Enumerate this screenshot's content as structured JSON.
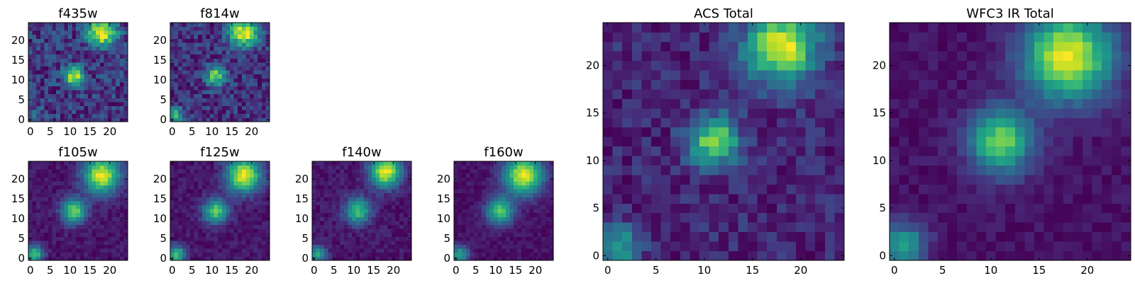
{
  "chart_data": {
    "type": "heatmap",
    "colormap": "viridis",
    "grid": false,
    "panels": [
      {
        "id": "f435w",
        "title": "f435w",
        "xlim": [
          -0.5,
          24.5
        ],
        "ylim": [
          -0.5,
          24.5
        ],
        "xticks": [
          0,
          5,
          10,
          15,
          20
        ],
        "yticks": [
          0,
          5,
          10,
          15,
          20
        ],
        "sources": [
          [
            18,
            22,
            1.0,
            2.5
          ],
          [
            11,
            11,
            0.9,
            1.7
          ],
          [
            1,
            1,
            0.3,
            1.5
          ]
        ],
        "background": 0.55,
        "noise": 0.45,
        "seed": 11
      },
      {
        "id": "f814w",
        "title": "f814w",
        "xlim": [
          -0.5,
          24.5
        ],
        "ylim": [
          -0.5,
          24.5
        ],
        "xticks": [
          0,
          5,
          10,
          15,
          20
        ],
        "yticks": [
          0,
          5,
          10,
          15,
          20
        ],
        "sources": [
          [
            18,
            22,
            1.0,
            2.6
          ],
          [
            11,
            11,
            0.8,
            1.8
          ],
          [
            1,
            1,
            0.6,
            1.5
          ]
        ],
        "background": 0.35,
        "noise": 0.4,
        "seed": 23
      },
      {
        "id": "f105w",
        "title": "f105w",
        "xlim": [
          -0.5,
          24.5
        ],
        "ylim": [
          -0.5,
          24.5
        ],
        "xticks": [
          0,
          5,
          10,
          15,
          20
        ],
        "yticks": [
          0,
          5,
          10,
          15,
          20
        ],
        "sources": [
          [
            18,
            21,
            1.0,
            3.2
          ],
          [
            11,
            12,
            0.8,
            2.2
          ],
          [
            1,
            1,
            0.7,
            1.6
          ]
        ],
        "background": 0.3,
        "noise": 0.15,
        "seed": 37
      },
      {
        "id": "f125w",
        "title": "f125w",
        "xlim": [
          -0.5,
          24.5
        ],
        "ylim": [
          -0.5,
          24.5
        ],
        "xticks": [
          0,
          5,
          10,
          15,
          20
        ],
        "yticks": [
          0,
          5,
          10,
          15,
          20
        ],
        "sources": [
          [
            18,
            21,
            1.0,
            3.0
          ],
          [
            11,
            12,
            0.75,
            2.2
          ],
          [
            1,
            1,
            0.7,
            1.6
          ]
        ],
        "background": 0.28,
        "noise": 0.15,
        "seed": 41
      },
      {
        "id": "f140w",
        "title": "f140w",
        "xlim": [
          -0.5,
          24.5
        ],
        "ylim": [
          -0.5,
          24.5
        ],
        "xticks": [
          0,
          5,
          10,
          15,
          20
        ],
        "yticks": [
          0,
          5,
          10,
          15,
          20
        ],
        "sources": [
          [
            18,
            22,
            1.0,
            2.8
          ],
          [
            11,
            12,
            0.7,
            2.3
          ],
          [
            1,
            1,
            0.6,
            1.5
          ]
        ],
        "background": 0.28,
        "noise": 0.16,
        "seed": 53
      },
      {
        "id": "f160w",
        "title": "f160w",
        "xlim": [
          -0.5,
          24.5
        ],
        "ylim": [
          -0.5,
          24.5
        ],
        "xticks": [
          0,
          5,
          10,
          15,
          20
        ],
        "yticks": [
          0,
          5,
          10,
          15,
          20
        ],
        "sources": [
          [
            17,
            21,
            1.0,
            3.4
          ],
          [
            11,
            12,
            0.75,
            2.4
          ],
          [
            1,
            1,
            0.6,
            1.6
          ]
        ],
        "background": 0.25,
        "noise": 0.12,
        "seed": 67
      },
      {
        "id": "acs-total",
        "title": "ACS Total",
        "xlim": [
          -0.5,
          24.5
        ],
        "ylim": [
          -0.5,
          24.5
        ],
        "xticks": [
          0,
          5,
          10,
          15,
          20
        ],
        "yticks": [
          0,
          5,
          10,
          15,
          20
        ],
        "sources": [
          [
            18,
            22,
            1.0,
            2.6
          ],
          [
            11,
            12,
            0.85,
            1.8
          ],
          [
            1,
            1,
            0.55,
            1.6
          ]
        ],
        "background": 0.45,
        "noise": 0.28,
        "seed": 79
      },
      {
        "id": "wfc3-ir-total",
        "title": "WFC3 IR Total",
        "xlim": [
          -0.5,
          24.5
        ],
        "ylim": [
          -0.5,
          24.5
        ],
        "xticks": [
          0,
          5,
          10,
          15,
          20
        ],
        "yticks": [
          0,
          5,
          10,
          15,
          20
        ],
        "sources": [
          [
            18,
            21,
            1.0,
            3.2
          ],
          [
            11,
            12,
            0.8,
            2.3
          ],
          [
            1,
            1,
            0.6,
            1.6
          ]
        ],
        "background": 0.28,
        "noise": 0.12,
        "seed": 97
      }
    ]
  }
}
